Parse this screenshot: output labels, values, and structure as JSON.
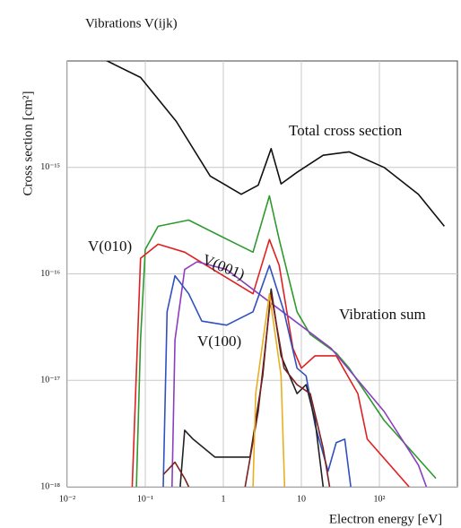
{
  "chart_data": {
    "type": "line",
    "title": "Vibrations V(ijk)",
    "x_label": "Electron energy [eV]",
    "y_label": "Cross section [cm²]",
    "log_x": true,
    "log_y": true,
    "grid": true,
    "xlim": [
      0.01,
      1000
    ],
    "ylim": [
      1e-18,
      1e-14
    ],
    "xticks": [
      {
        "value": 0.01,
        "label": "10⁻²"
      },
      {
        "value": 0.1,
        "label": "10⁻¹"
      },
      1,
      10,
      {
        "value": 100,
        "label": "10²"
      }
    ],
    "yticks": [
      {
        "value": 1e-18,
        "label": "10⁻¹⁸"
      },
      {
        "value": 1e-17,
        "label": "10⁻¹⁷"
      },
      {
        "value": 1e-16,
        "label": "10⁻¹⁶"
      },
      {
        "value": 1e-15,
        "label": "10⁻¹⁵"
      }
    ],
    "series": [
      {
        "name": "Total cross section",
        "color": "#111111",
        "x": [
          0.025,
          0.087,
          0.25,
          0.68,
          1.7,
          2.8,
          4.1,
          5.5,
          8.8,
          19,
          41,
          115,
          316,
          680
        ],
        "values": [
          1.1e-14,
          7e-15,
          2.7e-15,
          8.3e-16,
          5.6e-16,
          6.8e-16,
          1.5e-15,
          7e-16,
          9e-16,
          1.3e-15,
          1.4e-15,
          1e-15,
          5.6e-16,
          2.8e-16
        ]
      },
      {
        "name": "Vibration sum",
        "color": "#2e9a2e",
        "x": [
          0.077,
          0.087,
          0.1,
          0.146,
          0.36,
          0.88,
          2.4,
          3.9,
          5.2,
          8.8,
          13,
          28,
          41,
          115,
          530
        ],
        "values": [
          1e-18,
          2.4e-17,
          1.7e-16,
          2.8e-16,
          3.2e-16,
          2.3e-16,
          1.6e-16,
          5.4e-16,
          2.1e-16,
          4.4e-17,
          2.7e-17,
          1.8e-17,
          1.3e-17,
          4.2e-18,
          1.2e-18
        ]
      },
      {
        "name": "V(010)",
        "color": "#e02020",
        "x": [
          0.068,
          0.087,
          0.146,
          0.32,
          2.4,
          3.9,
          5.2,
          7.8,
          10,
          15,
          28,
          53,
          70,
          240
        ],
        "values": [
          1e-18,
          1.4e-16,
          1.9e-16,
          1.6e-16,
          6.5e-17,
          2.1e-16,
          1.2e-16,
          2e-17,
          1.3e-17,
          1.7e-17,
          1.7e-17,
          7.5e-18,
          2.8e-18,
          1e-18
        ]
      },
      {
        "name": "V(001)",
        "color": "#8a3fbf",
        "x": [
          0.22,
          0.24,
          0.32,
          0.46,
          1.1,
          4.1,
          24,
          115,
          316,
          400
        ],
        "values": [
          1e-18,
          2.4e-17,
          1.1e-16,
          1.3e-16,
          1.1e-16,
          5.3e-17,
          2e-17,
          5.1e-18,
          1.6e-18,
          1e-18
        ]
      },
      {
        "name": "V(100)",
        "color": "#3050c0",
        "x": [
          0.17,
          0.19,
          0.24,
          0.36,
          0.53,
          1.1,
          2.4,
          3.9,
          6,
          8.8,
          11.5,
          15,
          22,
          28,
          36,
          43
        ],
        "values": [
          1e-18,
          4.4e-17,
          9.6e-17,
          6.5e-17,
          3.6e-17,
          3.3e-17,
          4.4e-17,
          1.2e-16,
          4.4e-17,
          1.3e-17,
          1.1e-17,
          3.8e-18,
          1.4e-18,
          2.6e-18,
          2.8e-18,
          1e-18
        ]
      },
      {
        "color": "#222222",
        "x": [
          0.28,
          0.32,
          0.41,
          0.78,
          2.2,
          3.2,
          4.1,
          5.5,
          8.8,
          11.5,
          15,
          19
        ],
        "values": [
          1e-18,
          3.4e-18,
          2.8e-18,
          1.9e-18,
          1.9e-18,
          1.1e-17,
          7.2e-17,
          1.7e-17,
          7.5e-18,
          9.1e-18,
          4.2e-18,
          1e-18
        ]
      },
      {
        "color": "#7a1f1f",
        "x": [
          0.17,
          0.24,
          0.32,
          0.36,
          1,
          1.9,
          2.8,
          4.1,
          6,
          8.8,
          13,
          19,
          23
        ],
        "values": [
          1.3e-18,
          1.7e-18,
          1.2e-18,
          1e-18,
          null,
          1e-18,
          5.1e-18,
          6.5e-17,
          1.3e-17,
          9.1e-18,
          7.5e-18,
          2.3e-18,
          1e-18
        ]
      },
      {
        "color": "#e8b020",
        "x": [
          2.4,
          2.6,
          3.9,
          5.5,
          6.1
        ],
        "values": [
          1e-18,
          7.5e-18,
          6.5e-17,
          1.1e-17,
          1e-18
        ]
      }
    ]
  }
}
